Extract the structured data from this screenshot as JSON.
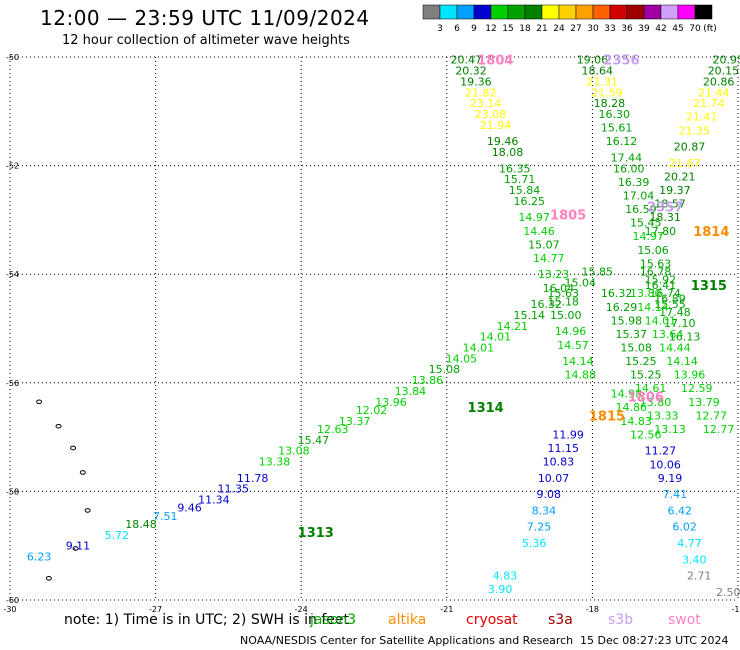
{
  "header": {
    "title": "12:00 — 23:59 UTC 11/09/2024",
    "subtitle": "12 hour collection of altimeter wave heights"
  },
  "colorbar": {
    "unit": "(ft)",
    "labels": [
      "3",
      "6",
      "9",
      "12",
      "15",
      "18",
      "21",
      "24",
      "27",
      "30",
      "33",
      "36",
      "39",
      "42",
      "45",
      "70"
    ],
    "colors": [
      "#7f7f7f",
      "#00e5ff",
      "#00a0ff",
      "#0000d0",
      "#00d000",
      "#00a000",
      "#008000",
      "#ffff00",
      "#ffd000",
      "#ffa000",
      "#ff6000",
      "#d00000",
      "#a00000",
      "#a000a0",
      "#d0a0ff",
      "#ff00ff",
      "#000000"
    ]
  },
  "footer": {
    "note": "note:  1) Time is in UTC;  2) SWH is in feet",
    "satellites": [
      {
        "name": "jason3",
        "color": "#00aa00"
      },
      {
        "name": "altika",
        "color": "#ff8c00"
      },
      {
        "name": "cryosat",
        "color": "#e00000"
      },
      {
        "name": "s3a",
        "color": "#a00000"
      },
      {
        "name": "s3b",
        "color": "#c8a0f0"
      },
      {
        "name": "swot",
        "color": "#ff80c0"
      }
    ],
    "credit": "NOAA/NESDIS Center for Satellite Applications and Research",
    "timestamp": "15 Dec 08:27:23 UTC 2024"
  },
  "chart_data": {
    "type": "scatter",
    "title": "12:00 — 23:59 UTC 11/09/2024",
    "subtitle": "12 hour collection of altimeter wave heights",
    "xlabel": "",
    "ylabel": "",
    "xlim": [
      -30,
      -15
    ],
    "ylim": [
      -60,
      -50
    ],
    "xticks": [
      -30,
      -27,
      -24,
      -21,
      -18,
      -15
    ],
    "yticks": [
      -50,
      -52,
      -54,
      -56,
      -58,
      -60
    ],
    "grid": true,
    "pass_labels": [
      {
        "text": "1804",
        "lon": -20.0,
        "lat": -50.05,
        "color": "#ff80c0"
      },
      {
        "text": "2356",
        "lon": -17.4,
        "lat": -50.05,
        "color": "#c8a0f0"
      },
      {
        "text": "1805",
        "lon": -18.5,
        "lat": -52.9,
        "color": "#ff80c0"
      },
      {
        "text": "2357",
        "lon": -16.5,
        "lat": -52.75,
        "color": "#c8a0f0"
      },
      {
        "text": "1814",
        "lon": -15.55,
        "lat": -53.2,
        "color": "#ff8c00"
      },
      {
        "text": "1315",
        "lon": -15.6,
        "lat": -54.2,
        "color": "#008000"
      },
      {
        "text": "1806",
        "lon": -16.9,
        "lat": -56.25,
        "color": "#ff80c0"
      },
      {
        "text": "1815",
        "lon": -17.7,
        "lat": -56.6,
        "color": "#ff8c00"
      },
      {
        "text": "1314",
        "lon": -20.2,
        "lat": -56.45,
        "color": "#008000"
      },
      {
        "text": "1313",
        "lon": -23.7,
        "lat": -58.75,
        "color": "#008000"
      }
    ],
    "series": [
      {
        "name": "swot",
        "tracks": [
          [
            [
              -20.6,
              -50.05,
              20.47
            ],
            [
              -20.5,
              -50.25,
              20.32
            ],
            [
              -20.4,
              -50.45,
              19.36
            ],
            [
              -20.3,
              -50.65,
              21.82
            ],
            [
              -20.2,
              -50.85,
              23.14
            ],
            [
              -20.1,
              -51.05,
              23.08
            ],
            [
              -20.0,
              -51.25,
              21.94
            ],
            [
              -19.85,
              -51.55,
              19.46
            ],
            [
              -19.75,
              -51.75,
              18.08
            ],
            [
              -19.6,
              -52.05,
              16.35
            ],
            [
              -19.5,
              -52.25,
              15.71
            ],
            [
              -19.4,
              -52.45,
              15.84
            ],
            [
              -19.3,
              -52.65,
              16.25
            ],
            [
              -19.2,
              -52.95,
              14.97
            ],
            [
              -19.1,
              -53.2,
              14.46
            ],
            [
              -19.0,
              -53.45,
              15.07
            ],
            [
              -18.9,
              -53.7,
              14.77
            ],
            [
              -18.8,
              -54.0,
              13.23
            ],
            [
              -18.7,
              -54.25,
              16.04
            ],
            [
              -18.6,
              -54.5,
              15.18
            ],
            [
              -18.55,
              -54.75,
              15.0
            ],
            [
              -18.45,
              -55.05,
              14.96
            ],
            [
              -18.4,
              -55.3,
              14.57
            ],
            [
              -18.3,
              -55.6,
              14.14
            ],
            [
              -18.25,
              -55.85,
              14.88
            ]
          ],
          [
            [
              -17.3,
              -56.2,
              14.98
            ],
            [
              -17.2,
              -56.45,
              14.86
            ],
            [
              -17.1,
              -56.7,
              14.83
            ],
            [
              -16.9,
              -56.95,
              12.56
            ]
          ]
        ]
      },
      {
        "name": "s3b",
        "tracks": [
          [
            [
              -18.0,
              -50.05,
              19.06
            ],
            [
              -17.9,
              -50.25,
              18.64
            ],
            [
              -17.8,
              -50.45,
              21.31
            ],
            [
              -17.7,
              -50.65,
              21.59
            ],
            [
              -17.65,
              -50.85,
              18.28
            ],
            [
              -17.55,
              -51.05,
              16.3
            ],
            [
              -17.5,
              -51.3,
              15.61
            ],
            [
              -17.4,
              -51.55,
              16.12
            ],
            [
              -17.3,
              -51.85,
              17.44
            ],
            [
              -17.25,
              -52.05,
              16.0
            ],
            [
              -17.15,
              -52.3,
              16.39
            ],
            [
              -17.05,
              -52.55,
              17.04
            ],
            [
              -17.0,
              -52.8,
              16.59
            ],
            [
              -16.9,
              -53.05,
              15.45
            ],
            [
              -16.85,
              -53.3,
              14.97
            ],
            [
              -16.75,
              -53.55,
              15.06
            ],
            [
              -16.7,
              -53.8,
              15.63
            ],
            [
              -16.6,
              -54.1,
              15.92
            ],
            [
              -16.5,
              -54.35,
              16.74
            ],
            [
              -16.4,
              -54.55,
              15.55
            ]
          ]
        ]
      },
      {
        "name": "altika",
        "tracks": [
          [
            [
              -15.2,
              -50.05,
              20.95
            ],
            [
              -15.3,
              -50.25,
              20.15
            ],
            [
              -15.4,
              -50.45,
              20.86
            ],
            [
              -15.5,
              -50.65,
              21.44
            ],
            [
              -15.6,
              -50.85,
              21.74
            ],
            [
              -15.75,
              -51.1,
              21.41
            ],
            [
              -15.9,
              -51.35,
              21.35
            ],
            [
              -16.0,
              -51.65,
              20.87
            ],
            [
              -16.1,
              -51.95,
              21.67
            ],
            [
              -16.2,
              -52.2,
              20.21
            ],
            [
              -16.3,
              -52.45,
              19.37
            ],
            [
              -16.4,
              -52.7,
              18.57
            ],
            [
              -16.5,
              -52.95,
              18.31
            ],
            [
              -16.6,
              -53.2,
              17.8
            ]
          ]
        ]
      },
      {
        "name": "jason3",
        "tracks": [
          [
            [
              -29.4,
              -59.2,
              6.23
            ],
            [
              -28.6,
              -59.0,
              9.11
            ],
            [
              -27.8,
              -58.8,
              5.72
            ],
            [
              -27.3,
              -58.6,
              18.48
            ],
            [
              -26.8,
              -58.45,
              7.51
            ],
            [
              -26.3,
              -58.3,
              9.46
            ],
            [
              -25.8,
              -58.15,
              11.34
            ],
            [
              -25.4,
              -57.95,
              11.35
            ],
            [
              -25.0,
              -57.75,
              11.78
            ],
            [
              -24.55,
              -57.45,
              13.38
            ],
            [
              -24.15,
              -57.25,
              13.08
            ],
            [
              -23.75,
              -57.05,
              15.47
            ],
            [
              -23.35,
              -56.85,
              12.63
            ],
            [
              -22.9,
              -56.7,
              13.37
            ],
            [
              -22.55,
              -56.5,
              12.02
            ],
            [
              -22.15,
              -56.35,
              13.96
            ],
            [
              -21.75,
              -56.15,
              13.84
            ],
            [
              -21.4,
              -55.95,
              13.86
            ],
            [
              -21.05,
              -55.75,
              15.08
            ],
            [
              -20.7,
              -55.55,
              14.05
            ],
            [
              -20.35,
              -55.35,
              14.01
            ],
            [
              -20.0,
              -55.15,
              14.01
            ],
            [
              -19.65,
              -54.95,
              14.21
            ],
            [
              -19.3,
              -54.75,
              15.14
            ],
            [
              -18.95,
              -54.55,
              16.32
            ],
            [
              -18.6,
              -54.35,
              15.63
            ],
            [
              -18.25,
              -54.15,
              15.04
            ],
            [
              -17.9,
              -53.95,
              15.85
            ]
          ],
          [
            [
              -16.7,
              -53.95,
              16.78
            ],
            [
              -16.6,
              -54.2,
              16.41
            ],
            [
              -16.4,
              -54.45,
              16.89
            ],
            [
              -16.3,
              -54.7,
              17.48
            ],
            [
              -16.2,
              -54.9,
              17.1
            ],
            [
              -16.1,
              -55.15,
              16.13
            ]
          ]
        ]
      },
      {
        "name": "lightgreen",
        "tracks": [
          [
            [
              -17.5,
              -54.35,
              16.32
            ],
            [
              -17.4,
              -54.6,
              16.29
            ],
            [
              -17.3,
              -54.85,
              15.98
            ],
            [
              -17.2,
              -55.1,
              15.37
            ],
            [
              -17.1,
              -55.35,
              15.08
            ],
            [
              -17.0,
              -55.6,
              15.25
            ],
            [
              -16.9,
              -55.85,
              15.25
            ],
            [
              -16.8,
              -56.1,
              14.61
            ],
            [
              -16.7,
              -56.35,
              13.8
            ],
            [
              -16.55,
              -56.6,
              13.33
            ],
            [
              -16.4,
              -56.85,
              13.13
            ]
          ],
          [
            [
              -16.9,
              -54.35,
              13.8
            ],
            [
              -16.75,
              -54.6,
              14.14
            ],
            [
              -16.6,
              -54.85,
              14.01
            ],
            [
              -16.45,
              -55.1,
              13.64
            ],
            [
              -16.3,
              -55.35,
              14.44
            ],
            [
              -16.15,
              -55.6,
              14.14
            ],
            [
              -16.0,
              -55.85,
              13.96
            ],
            [
              -15.85,
              -56.1,
              12.59
            ],
            [
              -15.7,
              -56.35,
              13.79
            ],
            [
              -15.55,
              -56.6,
              12.77
            ],
            [
              -15.4,
              -56.85,
              12.77
            ]
          ]
        ]
      },
      {
        "name": "blue-descending",
        "tracks": [
          [
            [
              -18.5,
              -56.95,
              11.99
            ],
            [
              -18.6,
              -57.2,
              11.15
            ],
            [
              -18.7,
              -57.45,
              10.83
            ],
            [
              -18.8,
              -57.75,
              10.07
            ],
            [
              -18.9,
              -58.05,
              9.08
            ],
            [
              -19.0,
              -58.35,
              8.34
            ],
            [
              -19.1,
              -58.65,
              7.25
            ],
            [
              -19.2,
              -58.95,
              5.36
            ],
            [
              -19.8,
              -59.55,
              4.83
            ],
            [
              -19.9,
              -59.8,
              3.9
            ]
          ],
          [
            [
              -16.6,
              -57.25,
              11.27
            ],
            [
              -16.5,
              -57.5,
              10.06
            ],
            [
              -16.4,
              -57.75,
              9.19
            ],
            [
              -16.3,
              -58.05,
              7.41
            ],
            [
              -16.2,
              -58.35,
              6.42
            ],
            [
              -16.1,
              -58.65,
              6.02
            ],
            [
              -16.0,
              -58.95,
              4.77
            ],
            [
              -15.9,
              -59.25,
              3.4
            ],
            [
              -15.8,
              -59.55,
              2.71
            ],
            [
              -15.2,
              -59.85,
              2.5
            ]
          ]
        ]
      }
    ],
    "land": [
      {
        "lon": -29.4,
        "lat": -56.35
      },
      {
        "lon": -29.0,
        "lat": -56.8
      },
      {
        "lon": -28.7,
        "lat": -57.2
      },
      {
        "lon": -28.5,
        "lat": -57.65
      },
      {
        "lon": -28.4,
        "lat": -58.35
      },
      {
        "lon": -28.65,
        "lat": -59.05
      },
      {
        "lon": -29.2,
        "lat": -59.6
      }
    ]
  }
}
